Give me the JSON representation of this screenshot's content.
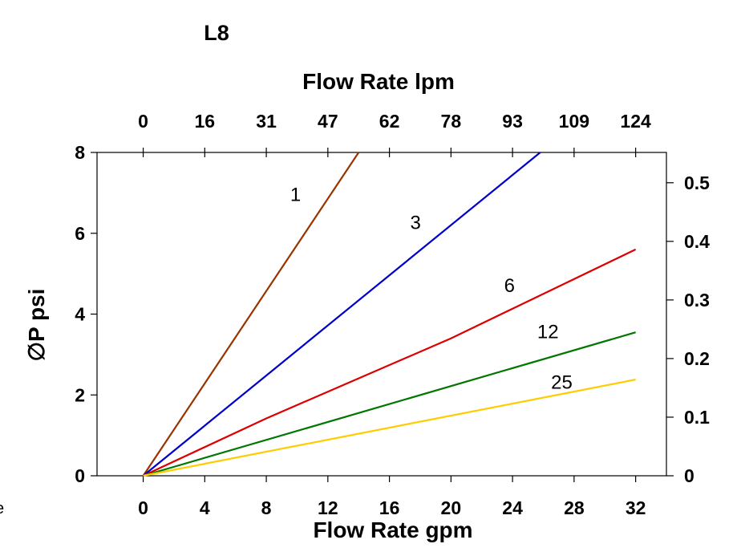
{
  "chart_data": {
    "type": "line",
    "title": "L8",
    "xlabel": "Flow Rate gpm",
    "x2label": "Flow Rate lpm",
    "ylabel": "∅P psi",
    "xlim": [
      -3,
      34
    ],
    "ylim": [
      0,
      8
    ],
    "x_ticks": [
      0,
      4,
      8,
      12,
      16,
      20,
      24,
      28,
      32
    ],
    "x_tick_labels": [
      "0",
      "4",
      "8",
      "12",
      "16",
      "20",
      "24",
      "28",
      "32"
    ],
    "x2_tick_labels": [
      "0",
      "16",
      "31",
      "47",
      "62",
      "78",
      "93",
      "109",
      "124"
    ],
    "y_ticks": [
      0,
      2,
      4,
      6,
      8
    ],
    "y_tick_labels": [
      "0",
      "2",
      "4",
      "6",
      "8"
    ],
    "y2_tick_labels": [
      "0",
      "0.1",
      "0.2",
      "0.3",
      "0.4",
      "0.5"
    ],
    "y2_ticks_psi": [
      0,
      1.45,
      2.9,
      4.35,
      5.8,
      7.25
    ],
    "series": [
      {
        "name": "1",
        "color": "#993300",
        "x": [
          0,
          14.0
        ],
        "y": [
          0,
          8.0
        ],
        "label_at": [
          9.9,
          6.8
        ]
      },
      {
        "name": "3",
        "color": "#0000cc",
        "x": [
          0,
          25.8
        ],
        "y": [
          0,
          8.0
        ],
        "label_at": [
          17.7,
          6.1
        ]
      },
      {
        "name": "6",
        "color": "#dd0000",
        "x": [
          0,
          8,
          20,
          32
        ],
        "y": [
          0,
          1.42,
          3.4,
          5.6
        ],
        "label_at": [
          23.8,
          4.55
        ]
      },
      {
        "name": "12",
        "color": "#007700",
        "x": [
          0,
          32
        ],
        "y": [
          0,
          3.55
        ],
        "label_at": [
          26.3,
          3.4
        ]
      },
      {
        "name": "25",
        "color": "#ffcc00",
        "x": [
          0,
          32
        ],
        "y": [
          0,
          2.38
        ],
        "label_at": [
          27.2,
          2.15
        ]
      }
    ]
  },
  "left_edge_glyph": "e"
}
